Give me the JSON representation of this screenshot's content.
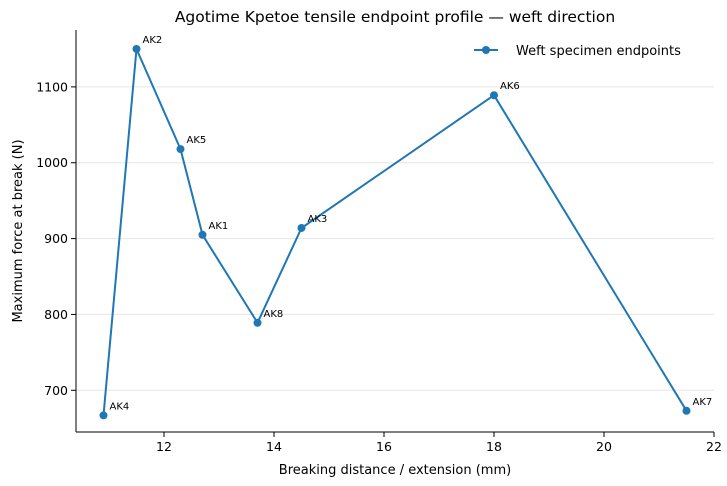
{
  "chart_data": {
    "type": "line",
    "title": "Agotime Kpetoe tensile endpoint profile — weft direction",
    "xlabel": "Breaking distance / extension (mm)",
    "ylabel": "Maximum force at break (N)",
    "xlim": [
      10.4,
      22.0
    ],
    "ylim": [
      645,
      1175
    ],
    "xticks": [
      "12",
      "14",
      "16",
      "18",
      "20",
      "22"
    ],
    "yticks": [
      "700",
      "800",
      "900",
      "1000",
      "1100"
    ],
    "grid": "horizontal",
    "legend_position": "top-right",
    "color": "#1f77b4",
    "series": [
      {
        "name": "Weft specimen endpoints",
        "points": [
          {
            "label": "AK4",
            "x": 10.9,
            "y": 667
          },
          {
            "label": "AK2",
            "x": 11.5,
            "y": 1150
          },
          {
            "label": "AK5",
            "x": 12.3,
            "y": 1018
          },
          {
            "label": "AK1",
            "x": 12.7,
            "y": 905
          },
          {
            "label": "AK8",
            "x": 13.7,
            "y": 789
          },
          {
            "label": "AK3",
            "x": 14.5,
            "y": 914
          },
          {
            "label": "AK6",
            "x": 18.0,
            "y": 1089
          },
          {
            "label": "AK7",
            "x": 21.5,
            "y": 673
          }
        ]
      }
    ]
  }
}
